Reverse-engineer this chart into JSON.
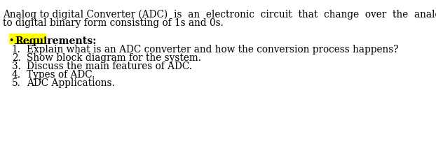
{
  "bg_color": "#ffffff",
  "line1": "Analog to digital Converter (ADC)  is  an  electronic  circuit  that  change  over  the  analog  signals  like  voltages",
  "line2": "to digital binary form consisting of 1s and 0s.",
  "bullet_text": "Requirements:",
  "bullet_color": "#ffff00",
  "bullet_marker": "•",
  "items": [
    "Explain what is an ADC converter and how the conversion process happens?",
    "Show block diagram for the system.",
    "Discuss the main features of ADC.",
    "Types of ADC.",
    "ADC Applications."
  ],
  "font_family": "DejaVu Serif",
  "para_fontsize": 9.8,
  "bullet_fontsize": 10.2,
  "item_fontsize": 9.8
}
